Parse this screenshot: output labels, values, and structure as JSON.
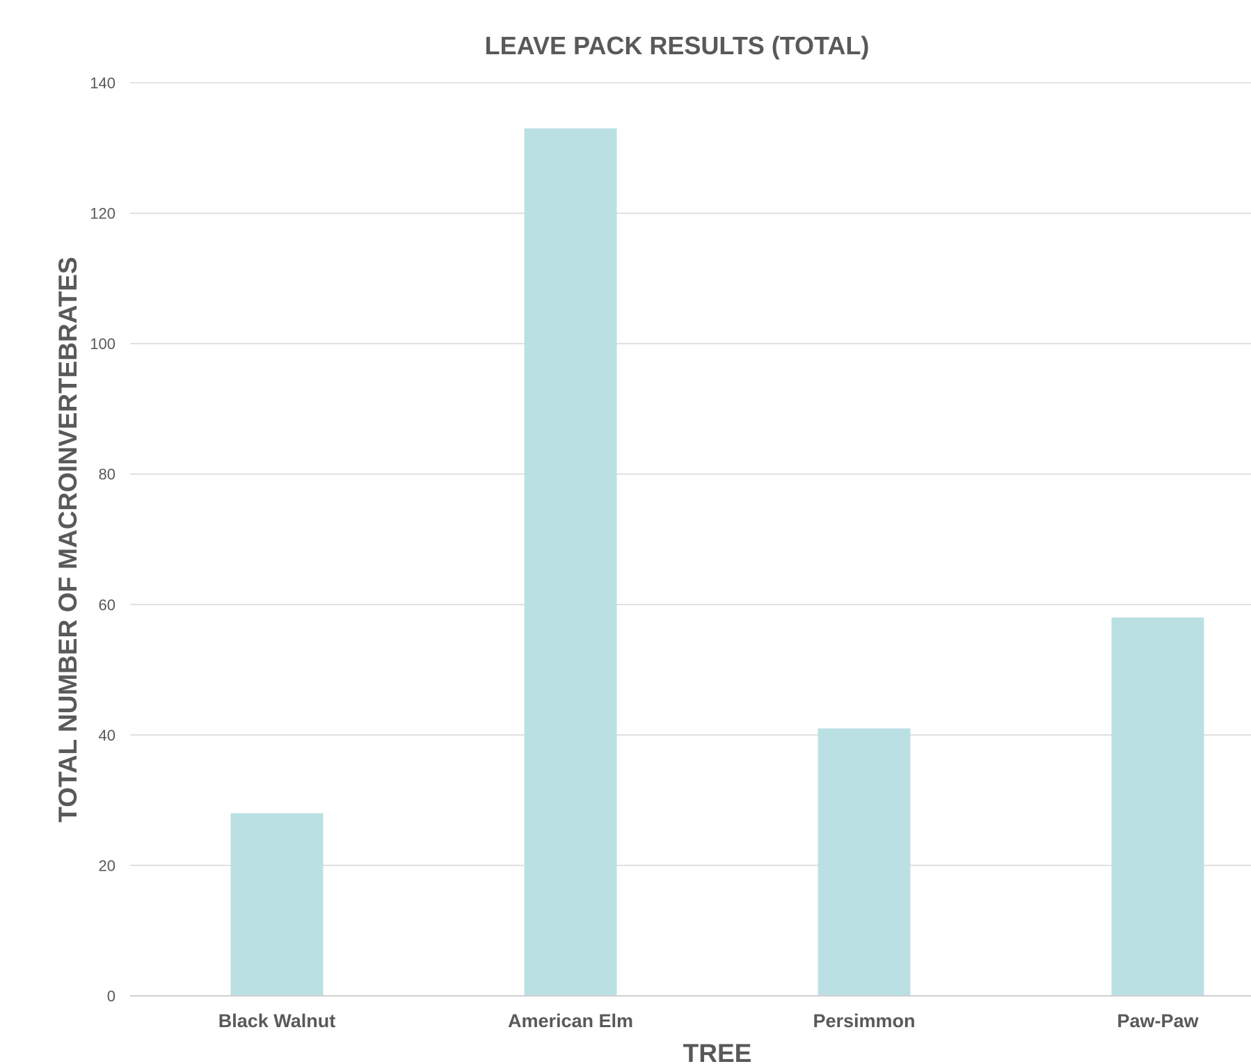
{
  "chart_data": {
    "type": "bar",
    "title": "LEAVE PACK RESULTS (TOTAL)",
    "xlabel": "TREE",
    "ylabel": "TOTAL NUMBER OF MACROINVERTEBRATES",
    "categories": [
      "Black Walnut",
      "American Elm",
      "Persimmon",
      "Paw-Paw"
    ],
    "values": [
      28,
      133,
      41,
      58
    ],
    "ylim": [
      0,
      140
    ],
    "yticks": [
      0,
      20,
      40,
      60,
      80,
      100,
      120,
      140
    ],
    "grid": true,
    "legend": "none",
    "bar_color": "#bae0e3"
  }
}
